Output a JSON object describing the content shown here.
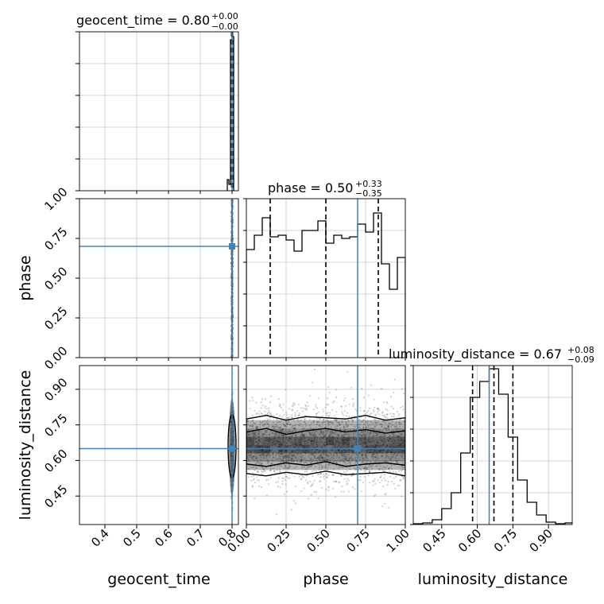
{
  "colors": {
    "truth": "#4682b4",
    "hist": "#000000",
    "grid": "#c8c8c8",
    "density": "#000000",
    "background": "#ffffff"
  },
  "chart_data": {
    "type": "corner",
    "parameters": [
      "geocent_time",
      "phase",
      "luminosity_distance"
    ],
    "axis_labels": {
      "geocent_time": "geocent_time",
      "phase": "phase",
      "luminosity_distance": "luminosity_distance"
    },
    "titles": [
      {
        "param": "geocent_time",
        "text": "geocent_time = 0.80",
        "upper": "+0.00",
        "lower": "−0.00"
      },
      {
        "param": "phase",
        "text": "phase = 0.50",
        "upper": "+0.33",
        "lower": "−0.35"
      },
      {
        "param": "luminosity_distance",
        "text": "luminosity_distance = 0.67",
        "upper": "+0.08",
        "lower": "−0.09"
      }
    ],
    "ranges": {
      "geocent_time": [
        0.32,
        0.82
      ],
      "phase": [
        0.0,
        1.0
      ],
      "luminosity_distance": [
        0.33,
        1.0
      ]
    },
    "ticks": {
      "geocent_time": {
        "values": [
          0.4,
          0.5,
          0.6,
          0.7,
          0.8
        ],
        "labels": [
          "0.4",
          "0.5",
          "0.6",
          "0.7",
          "0.8"
        ]
      },
      "phase": {
        "values": [
          0.0,
          0.25,
          0.5,
          0.75,
          1.0
        ],
        "labels": [
          "0.00",
          "0.25",
          "0.50",
          "0.75",
          "1.00"
        ]
      },
      "luminosity_distance": {
        "values": [
          0.45,
          0.6,
          0.75,
          0.9
        ],
        "labels": [
          "0.45",
          "0.60",
          "0.75",
          "0.90"
        ]
      }
    },
    "truths": {
      "geocent_time": 0.8,
      "phase": 0.7,
      "luminosity_distance": 0.65
    },
    "quantiles": {
      "geocent_time": [
        0.7985,
        0.8,
        0.8015
      ],
      "phase": [
        0.15,
        0.5,
        0.83
      ],
      "luminosity_distance": [
        0.58,
        0.67,
        0.75
      ]
    },
    "histograms": {
      "geocent_time": {
        "edges": [
          0.785,
          0.79,
          0.795,
          0.8,
          0.805
        ],
        "values": [
          0.07,
          0.04,
          0.95,
          0.97
        ]
      },
      "phase": {
        "edges": [
          0.0,
          0.05,
          0.1,
          0.15,
          0.2,
          0.25,
          0.3,
          0.35,
          0.4,
          0.45,
          0.5,
          0.55,
          0.6,
          0.65,
          0.7,
          0.75,
          0.8,
          0.85,
          0.9,
          0.95,
          1.0
        ],
        "values": [
          0.68,
          0.77,
          0.88,
          0.76,
          0.77,
          0.74,
          0.67,
          0.8,
          0.8,
          0.86,
          0.72,
          0.77,
          0.75,
          0.76,
          0.84,
          0.79,
          0.91,
          0.59,
          0.43,
          0.63
        ]
      },
      "luminosity_distance": {
        "edges": [
          0.33,
          0.37,
          0.41,
          0.45,
          0.49,
          0.53,
          0.57,
          0.61,
          0.65,
          0.69,
          0.73,
          0.77,
          0.81,
          0.85,
          0.89,
          0.93,
          0.97,
          1.01
        ],
        "values": [
          0.005,
          0.01,
          0.03,
          0.1,
          0.2,
          0.45,
          0.8,
          0.9,
          0.98,
          0.82,
          0.55,
          0.28,
          0.14,
          0.06,
          0.015,
          0.005,
          0.01
        ]
      }
    },
    "contour_levels_phase_vs_luminosity_distance": [
      {
        "y_low": [
          0.585,
          0.575,
          0.59,
          0.58,
          0.595,
          0.575,
          0.585,
          0.59,
          0.58
        ],
        "y_high": [
          0.72,
          0.735,
          0.71,
          0.725,
          0.735,
          0.72,
          0.73,
          0.715,
          0.725
        ]
      },
      {
        "y_low": [
          0.545,
          0.535,
          0.55,
          0.54,
          0.555,
          0.54,
          0.545,
          0.55,
          0.535
        ],
        "y_high": [
          0.775,
          0.79,
          0.77,
          0.785,
          0.78,
          0.775,
          0.79,
          0.77,
          0.78
        ]
      }
    ],
    "grid": true,
    "legend": "none"
  }
}
